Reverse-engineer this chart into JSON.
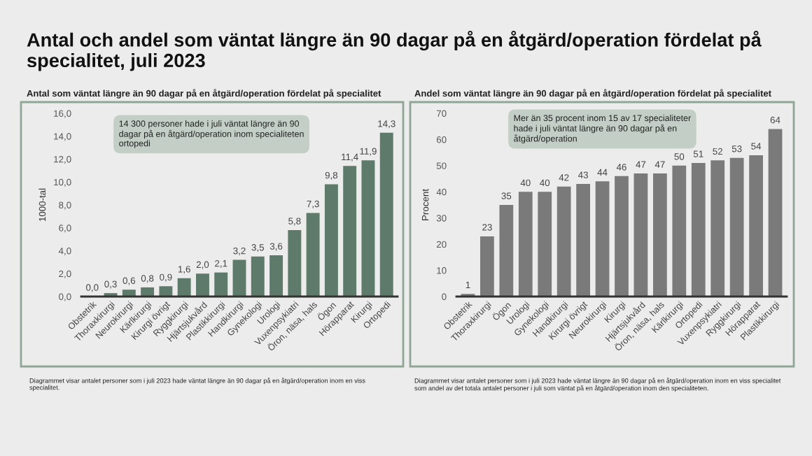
{
  "chart_data": [
    {
      "type": "bar",
      "title": "Antal och andel som väntat längre än 90 dagar på en åtgärd/operation fördelat på specialitet, juli 2023",
      "subtitle": "Antal som väntat längre än 90 dagar på en åtgärd/operation fördelat på specialitet",
      "ylabel": "1000-tal",
      "categories": [
        "Obstetrik",
        "Thoraxkirurgi",
        "Neurokirurgi",
        "Kärlkirurgi",
        "Kirurgi övrigt",
        "Ryggkirurgi",
        "Hjärtsjukvård",
        "Plastikkirurgi",
        "Handkirurgi",
        "Gynekologi",
        "Urologi",
        "Vuxenpsykiatri",
        "Öron, näsa, hals",
        "Ögon",
        "Hörapparat",
        "Kirurgi",
        "Ortopedi"
      ],
      "values": [
        0.0,
        0.3,
        0.6,
        0.8,
        0.9,
        1.6,
        2.0,
        2.1,
        3.2,
        3.5,
        3.6,
        5.8,
        7.3,
        9.8,
        11.4,
        11.9,
        14.3
      ],
      "value_labels": [
        "0,0",
        "0,3",
        "0,6",
        "0,8",
        "0,9",
        "1,6",
        "2,0",
        "2,1",
        "3,2",
        "3,5",
        "3,6",
        "5,8",
        "7,3",
        "9,8",
        "11,4",
        "11,9",
        "14,3"
      ],
      "color": "#5e7a6b",
      "ylim": [
        0,
        16
      ],
      "yticks": [
        {
          "value": 0,
          "label": "0,0"
        },
        {
          "value": 2,
          "label": "2,0"
        },
        {
          "value": 4,
          "label": "4,0"
        },
        {
          "value": 6,
          "label": "6,0"
        },
        {
          "value": 8,
          "label": "8,0"
        },
        {
          "value": 10,
          "label": "10,0"
        },
        {
          "value": 12,
          "label": "12,0"
        },
        {
          "value": 14,
          "label": "14,0"
        },
        {
          "value": 16,
          "label": "16,0"
        }
      ],
      "grid": false,
      "annotations": [
        "14 300 personer hade i juli väntat längre än 90 dagar på en åtgärd/operation inom specialiteten ortopedi",
        "Diagrammet visar antalet personer som i juli 2023 hade väntat längre än 90 dagar på en åtgärd/operation inom en viss specialitet."
      ]
    },
    {
      "type": "bar",
      "subtitle": "Andel som väntat längre än 90 dagar på en åtgärd/operation fördelat på specialitet",
      "ylabel": "Procent",
      "categories": [
        "Obstetrik",
        "Thoraxkirurgi",
        "Ögon",
        "Urologi",
        "Gynekologi",
        "Handkirurgi",
        "Kirurgi övrigt",
        "Neurokirurgi",
        "Kirurgi",
        "Hjärtsjukvård",
        "Öron, näsa, hals",
        "Kärlkirurgi",
        "Ortopedi",
        "Vuxenpsykiatri",
        "Ryggkirurgi",
        "Hörapparat",
        "Plastikkirurgi"
      ],
      "values": [
        1,
        23,
        35,
        40,
        40,
        42,
        43,
        44,
        46,
        47,
        47,
        50,
        51,
        52,
        53,
        54,
        64
      ],
      "data_labels": true,
      "color": "#7a7a7a",
      "ylim": [
        0,
        70
      ],
      "yticks": [
        0,
        10,
        20,
        30,
        40,
        50,
        60,
        70
      ],
      "grid": false,
      "annotations": [
        "Mer än 35 procent inom 15 av 17 specialiteter hade i juli väntat längre än 90 dagar på en åtgärd/operation",
        "Diagrammet visar antalet personer som i juli 2023 hade väntat längre än 90 dagar på en åtgärd/operation inom en viss specialitet som andel av det totala antalet personer i juli som väntat på en åtgärd/operation inom den specialiteten."
      ]
    }
  ]
}
